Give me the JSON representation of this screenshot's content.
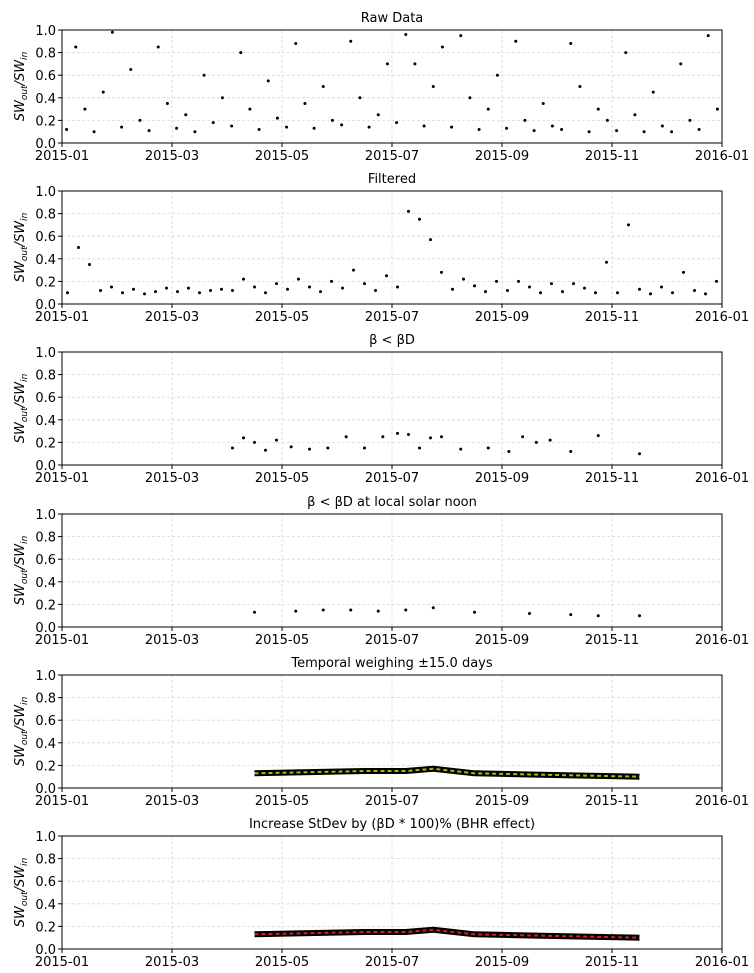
{
  "chart_data": [
    {
      "type": "scatter",
      "title": "Raw Data",
      "ylabel": [
        "SW",
        "out",
        "/SW",
        "in"
      ],
      "color": "#000000",
      "grid": true,
      "xlim": [
        "2015-01",
        "2016-01"
      ],
      "xticks": [
        "2015-01",
        "2015-03",
        "2015-05",
        "2015-07",
        "2015-09",
        "2015-11",
        "2016-01"
      ],
      "ylim": [
        0,
        1
      ],
      "yticks": [
        {
          "value": 0,
          "label": "0.0"
        },
        0.2,
        0.4,
        0.6,
        0.8,
        {
          "value": 1,
          "label": "1.0"
        }
      ],
      "x": [
        "2015-01",
        "2015-01",
        "2015-01",
        "2015-01",
        "2015-01",
        "2015-01",
        "2015-02",
        "2015-02",
        "2015-02",
        "2015-02",
        "2015-02",
        "2015-02",
        "2015-03",
        "2015-03",
        "2015-03",
        "2015-03",
        "2015-03",
        "2015-03",
        "2015-04",
        "2015-04",
        "2015-04",
        "2015-04",
        "2015-04",
        "2015-04",
        "2015-05",
        "2015-05",
        "2015-05",
        "2015-05",
        "2015-05",
        "2015-05",
        "2015-06",
        "2015-06",
        "2015-06",
        "2015-06",
        "2015-06",
        "2015-06",
        "2015-07",
        "2015-07",
        "2015-07",
        "2015-07",
        "2015-07",
        "2015-07",
        "2015-08",
        "2015-08",
        "2015-08",
        "2015-08",
        "2015-08",
        "2015-08",
        "2015-09",
        "2015-09",
        "2015-09",
        "2015-09",
        "2015-09",
        "2015-09",
        "2015-10",
        "2015-10",
        "2015-10",
        "2015-10",
        "2015-10",
        "2015-10",
        "2015-11",
        "2015-11",
        "2015-11",
        "2015-11",
        "2015-11",
        "2015-11",
        "2015-12",
        "2015-12",
        "2015-12",
        "2015-12",
        "2015-12",
        "2015-12"
      ],
      "values": [
        0.12,
        0.85,
        0.3,
        0.1,
        0.45,
        0.98,
        0.14,
        0.65,
        0.2,
        0.11,
        0.85,
        0.35,
        0.13,
        0.25,
        0.1,
        0.6,
        0.18,
        0.4,
        0.15,
        0.8,
        0.3,
        0.12,
        0.55,
        0.22,
        0.14,
        0.88,
        0.35,
        0.13,
        0.5,
        0.2,
        0.16,
        0.9,
        0.4,
        0.14,
        0.25,
        0.7,
        0.18,
        0.96,
        0.7,
        0.15,
        0.5,
        0.85,
        0.14,
        0.95,
        0.4,
        0.12,
        0.3,
        0.6,
        0.13,
        0.9,
        0.2,
        0.11,
        0.35,
        0.15,
        0.12,
        0.88,
        0.5,
        0.1,
        0.3,
        0.2,
        0.11,
        0.8,
        0.25,
        0.1,
        0.45,
        0.15,
        0.1,
        0.7,
        0.2,
        0.12,
        0.95,
        0.3
      ]
    },
    {
      "type": "scatter",
      "title": "Filtered",
      "ylabel": [
        "SW",
        "out",
        "/SW",
        "in"
      ],
      "color": "#000000",
      "grid": true,
      "xlim": [
        "2015-01",
        "2016-01"
      ],
      "xticks": [
        "2015-01",
        "2015-03",
        "2015-05",
        "2015-07",
        "2015-09",
        "2015-11",
        "2016-01"
      ],
      "ylim": [
        0,
        1
      ],
      "yticks": [
        {
          "value": 0,
          "label": "0.0"
        },
        0.2,
        0.4,
        0.6,
        0.8,
        {
          "value": 1,
          "label": "1.0"
        }
      ],
      "x": [
        "2015-01",
        "2015-01",
        "2015-01",
        "2015-01",
        "2015-01",
        "2015-02",
        "2015-02",
        "2015-02",
        "2015-02",
        "2015-02",
        "2015-03",
        "2015-03",
        "2015-03",
        "2015-03",
        "2015-03",
        "2015-04",
        "2015-04",
        "2015-04",
        "2015-04",
        "2015-04",
        "2015-05",
        "2015-05",
        "2015-05",
        "2015-05",
        "2015-05",
        "2015-06",
        "2015-06",
        "2015-06",
        "2015-06",
        "2015-06",
        "2015-07",
        "2015-07",
        "2015-07",
        "2015-07",
        "2015-07",
        "2015-08",
        "2015-08",
        "2015-08",
        "2015-08",
        "2015-08",
        "2015-09",
        "2015-09",
        "2015-09",
        "2015-09",
        "2015-09",
        "2015-10",
        "2015-10",
        "2015-10",
        "2015-10",
        "2015-10",
        "2015-11",
        "2015-11",
        "2015-11",
        "2015-11",
        "2015-11",
        "2015-12",
        "2015-12",
        "2015-12",
        "2015-12",
        "2015-12"
      ],
      "values": [
        0.1,
        0.5,
        0.35,
        0.12,
        0.15,
        0.1,
        0.13,
        0.09,
        0.11,
        0.14,
        0.11,
        0.14,
        0.1,
        0.12,
        0.13,
        0.12,
        0.22,
        0.15,
        0.1,
        0.18,
        0.13,
        0.22,
        0.15,
        0.11,
        0.2,
        0.14,
        0.3,
        0.18,
        0.12,
        0.25,
        0.15,
        0.82,
        0.75,
        0.57,
        0.28,
        0.13,
        0.22,
        0.16,
        0.11,
        0.2,
        0.12,
        0.2,
        0.15,
        0.1,
        0.18,
        0.11,
        0.18,
        0.14,
        0.1,
        0.37,
        0.1,
        0.7,
        0.13,
        0.09,
        0.15,
        0.1,
        0.28,
        0.12,
        0.09,
        0.2
      ]
    },
    {
      "type": "scatter",
      "title": "β < βD",
      "ylabel": [
        "SW",
        "out",
        "/SW",
        "in"
      ],
      "color": "#000000",
      "grid": true,
      "xlim": [
        "2015-01",
        "2016-01"
      ],
      "xticks": [
        "2015-01",
        "2015-03",
        "2015-05",
        "2015-07",
        "2015-09",
        "2015-11",
        "2016-01"
      ],
      "ylim": [
        0,
        1
      ],
      "yticks": [
        {
          "value": 0,
          "label": "0.0"
        },
        0.2,
        0.4,
        0.6,
        0.8,
        {
          "value": 1,
          "label": "1.0"
        }
      ],
      "x": [
        "2015-04",
        "2015-04",
        "2015-04",
        "2015-04",
        "2015-04",
        "2015-05",
        "2015-05",
        "2015-05",
        "2015-06",
        "2015-06",
        "2015-06",
        "2015-07",
        "2015-07",
        "2015-07",
        "2015-07",
        "2015-07",
        "2015-08",
        "2015-08",
        "2015-09",
        "2015-09",
        "2015-09",
        "2015-09",
        "2015-10",
        "2015-10",
        "2015-11"
      ],
      "values": [
        0.15,
        0.24,
        0.2,
        0.13,
        0.22,
        0.16,
        0.14,
        0.15,
        0.25,
        0.15,
        0.25,
        0.28,
        0.27,
        0.15,
        0.24,
        0.25,
        0.14,
        0.15,
        0.12,
        0.25,
        0.2,
        0.22,
        0.12,
        0.26,
        0.1
      ]
    },
    {
      "type": "scatter",
      "title": "β < βD at local solar noon",
      "ylabel": [
        "SW",
        "out",
        "/SW",
        "in"
      ],
      "color": "#000000",
      "grid": true,
      "xlim": [
        "2015-01",
        "2016-01"
      ],
      "xticks": [
        "2015-01",
        "2015-03",
        "2015-05",
        "2015-07",
        "2015-09",
        "2015-11",
        "2016-01"
      ],
      "ylim": [
        0,
        1
      ],
      "yticks": [
        {
          "value": 0,
          "label": "0.0"
        },
        0.2,
        0.4,
        0.6,
        0.8,
        {
          "value": 1,
          "label": "1.0"
        }
      ],
      "x": [
        "2015-04",
        "2015-05",
        "2015-05",
        "2015-06",
        "2015-06",
        "2015-07",
        "2015-07",
        "2015-08",
        "2015-09",
        "2015-10",
        "2015-10",
        "2015-11"
      ],
      "values": [
        0.13,
        0.14,
        0.15,
        0.15,
        0.14,
        0.15,
        0.17,
        0.13,
        0.12,
        0.11,
        0.1,
        0.1
      ]
    },
    {
      "type": "line",
      "title": "Temporal weighing  ±15.0 days",
      "ylabel": [
        "SW",
        "out",
        "/SW",
        "in"
      ],
      "color": "#000000",
      "dash_color": "#b5b500",
      "grid": true,
      "xlim": [
        "2015-01",
        "2016-01"
      ],
      "xticks": [
        "2015-01",
        "2015-03",
        "2015-05",
        "2015-07",
        "2015-09",
        "2015-11",
        "2016-01"
      ],
      "ylim": [
        0,
        1
      ],
      "yticks": [
        {
          "value": 0,
          "label": "0.0"
        },
        0.2,
        0.4,
        0.6,
        0.8,
        {
          "value": 1,
          "label": "1.0"
        }
      ],
      "x": [
        "2015-04",
        "2015-05",
        "2015-06",
        "2015-07",
        "2015-07",
        "2015-08",
        "2015-09",
        "2015-10",
        "2015-11"
      ],
      "values": [
        0.13,
        0.14,
        0.15,
        0.15,
        0.17,
        0.13,
        0.12,
        0.11,
        0.1
      ]
    },
    {
      "type": "line",
      "title": "Increase StDev by (βD * 100)% (BHR effect)",
      "ylabel": [
        "SW",
        "out",
        "/SW",
        "in"
      ],
      "color": "#000000",
      "dash_color": "#d62020",
      "grid": true,
      "xlim": [
        "2015-01",
        "2016-01"
      ],
      "xticks": [
        "2015-01",
        "2015-03",
        "2015-05",
        "2015-07",
        "2015-09",
        "2015-11",
        "2016-01"
      ],
      "ylim": [
        0,
        1
      ],
      "yticks": [
        {
          "value": 0,
          "label": "0.0"
        },
        0.2,
        0.4,
        0.6,
        0.8,
        {
          "value": 1,
          "label": "1.0"
        }
      ],
      "x": [
        "2015-04",
        "2015-05",
        "2015-06",
        "2015-07",
        "2015-07",
        "2015-08",
        "2015-09",
        "2015-10",
        "2015-11"
      ],
      "values": [
        0.13,
        0.14,
        0.15,
        0.15,
        0.17,
        0.13,
        0.12,
        0.11,
        0.1
      ]
    }
  ]
}
